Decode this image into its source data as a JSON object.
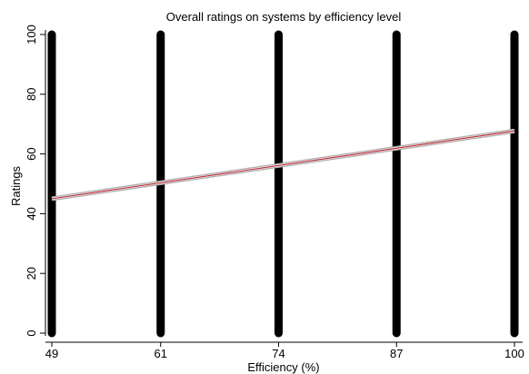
{
  "chart_data": {
    "type": "scatter",
    "title": "Overall ratings on systems by efficiency level",
    "xlabel": "Efficiency (%)",
    "ylabel": "Ratings",
    "x_ticks": [
      49,
      61,
      74,
      87,
      100
    ],
    "y_ticks": [
      0,
      20,
      40,
      60,
      80,
      100
    ],
    "xlim": [
      49,
      100
    ],
    "ylim": [
      0,
      100
    ],
    "grid": false,
    "scatter": {
      "description": "Ratings spread across the full 0-100 range at each efficiency level",
      "x": [
        49,
        61,
        74,
        87,
        100
      ],
      "y_min": [
        0,
        0,
        0,
        0,
        0
      ],
      "y_max": [
        100,
        100,
        100,
        100,
        100
      ],
      "color": "#000000"
    },
    "fit_line": {
      "x": [
        49,
        100
      ],
      "y": [
        45,
        67.7
      ],
      "color": "#c0303a",
      "ci_color": "#b0b0b0"
    }
  }
}
